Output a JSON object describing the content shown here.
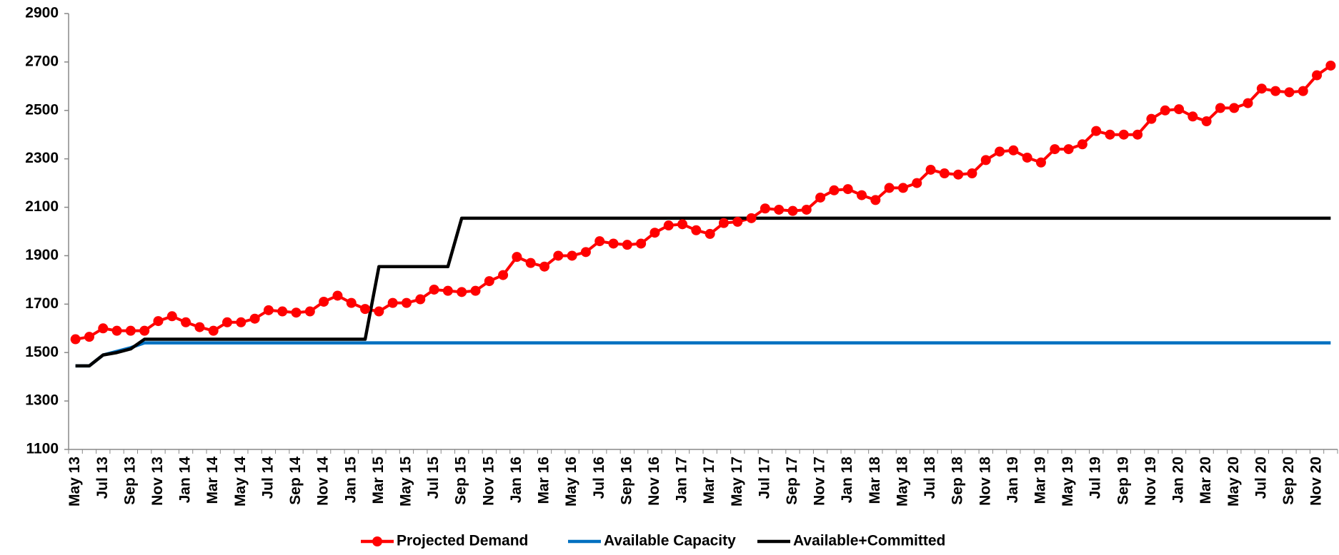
{
  "chart_data": {
    "type": "line",
    "categories": [
      "May 13",
      null,
      "Jul 13",
      null,
      "Sep 13",
      null,
      "Nov 13",
      null,
      "Jan 14",
      null,
      "Mar 14",
      null,
      "May 14",
      null,
      "Jul 14",
      null,
      "Sep 14",
      null,
      "Nov 14",
      null,
      "Jan 15",
      null,
      "Mar 15",
      null,
      "May 15",
      null,
      "Jul 15",
      null,
      "Sep 15",
      null,
      "Nov 15",
      null,
      "Jan 16",
      null,
      "Mar 16",
      null,
      "May 16",
      null,
      "Jul 16",
      null,
      "Sep 16",
      null,
      "Nov 16",
      null,
      "Jan 17",
      null,
      "Mar 17",
      null,
      "May 17",
      null,
      "Jul 17",
      null,
      "Sep 17",
      null,
      "Nov 17",
      null,
      "Jan 18",
      null,
      "Mar 18",
      null,
      "May 18",
      null,
      "Jul 18",
      null,
      "Sep 18",
      null,
      "Nov 18",
      null,
      "Jan 19",
      null,
      "Mar 19",
      null,
      "May 19",
      null,
      "Jul 19",
      null,
      "Sep 19",
      null,
      "Nov 19",
      null,
      "Jan 20",
      null,
      "Mar 20",
      null,
      "May 20",
      null,
      "Jul 20",
      null,
      "Sep 20",
      null,
      "Nov 20",
      null
    ],
    "series": [
      {
        "name": "Projected Demand",
        "color": "#ff0000",
        "marker": true,
        "values": [
          1555,
          1565,
          1600,
          1590,
          1590,
          1590,
          1630,
          1650,
          1625,
          1605,
          1590,
          1625,
          1625,
          1640,
          1675,
          1670,
          1665,
          1670,
          1710,
          1735,
          1705,
          1680,
          1670,
          1705,
          1705,
          1720,
          1760,
          1755,
          1750,
          1755,
          1795,
          1820,
          1895,
          1870,
          1855,
          1900,
          1900,
          1915,
          1960,
          1950,
          1945,
          1950,
          1995,
          2025,
          2030,
          2005,
          1990,
          2035,
          2040,
          2055,
          2095,
          2090,
          2085,
          2090,
          2140,
          2170,
          2175,
          2150,
          2130,
          2180,
          2180,
          2200,
          2255,
          2240,
          2235,
          2240,
          2295,
          2330,
          2335,
          2305,
          2285,
          2340,
          2340,
          2360,
          2415,
          2400,
          2400,
          2400,
          2465,
          2500,
          2505,
          2475,
          2455,
          2510,
          2510,
          2530,
          2590,
          2580,
          2575,
          2580,
          2645,
          2685
        ]
      },
      {
        "name": "Available Capacity",
        "color": "#0070c0",
        "marker": false,
        "values": [
          1445,
          1445,
          1490,
          1505,
          1520,
          1540,
          1540,
          1540,
          1540,
          1540,
          1540,
          1540,
          1540,
          1540,
          1540,
          1540,
          1540,
          1540,
          1540,
          1540,
          1540,
          1540,
          1540,
          1540,
          1540,
          1540,
          1540,
          1540,
          1540,
          1540,
          1540,
          1540,
          1540,
          1540,
          1540,
          1540,
          1540,
          1540,
          1540,
          1540,
          1540,
          1540,
          1540,
          1540,
          1540,
          1540,
          1540,
          1540,
          1540,
          1540,
          1540,
          1540,
          1540,
          1540,
          1540,
          1540,
          1540,
          1540,
          1540,
          1540,
          1540,
          1540,
          1540,
          1540,
          1540,
          1540,
          1540,
          1540,
          1540,
          1540,
          1540,
          1540,
          1540,
          1540,
          1540,
          1540,
          1540,
          1540,
          1540,
          1540,
          1540,
          1540,
          1540,
          1540,
          1540,
          1540,
          1540,
          1540,
          1540,
          1540,
          1540,
          1540
        ]
      },
      {
        "name": "Available+Committed",
        "color": "#000000",
        "marker": false,
        "values": [
          1445,
          1445,
          1490,
          1500,
          1515,
          1555,
          1555,
          1555,
          1555,
          1555,
          1555,
          1555,
          1555,
          1555,
          1555,
          1555,
          1555,
          1555,
          1555,
          1555,
          1555,
          1555,
          1855,
          1855,
          1855,
          1855,
          1855,
          1855,
          2055,
          2055,
          2055,
          2055,
          2055,
          2055,
          2055,
          2055,
          2055,
          2055,
          2055,
          2055,
          2055,
          2055,
          2055,
          2055,
          2055,
          2055,
          2055,
          2055,
          2055,
          2055,
          2055,
          2055,
          2055,
          2055,
          2055,
          2055,
          2055,
          2055,
          2055,
          2055,
          2055,
          2055,
          2055,
          2055,
          2055,
          2055,
          2055,
          2055,
          2055,
          2055,
          2055,
          2055,
          2055,
          2055,
          2055,
          2055,
          2055,
          2055,
          2055,
          2055,
          2055,
          2055,
          2055,
          2055,
          2055,
          2055,
          2055,
          2055,
          2055,
          2055,
          2055,
          2055
        ]
      }
    ],
    "ylim": [
      1100,
      2900
    ],
    "yticks": [
      1100,
      1300,
      1500,
      1700,
      1900,
      2100,
      2300,
      2500,
      2700,
      2900
    ],
    "grid": false,
    "legend": "bottom"
  }
}
